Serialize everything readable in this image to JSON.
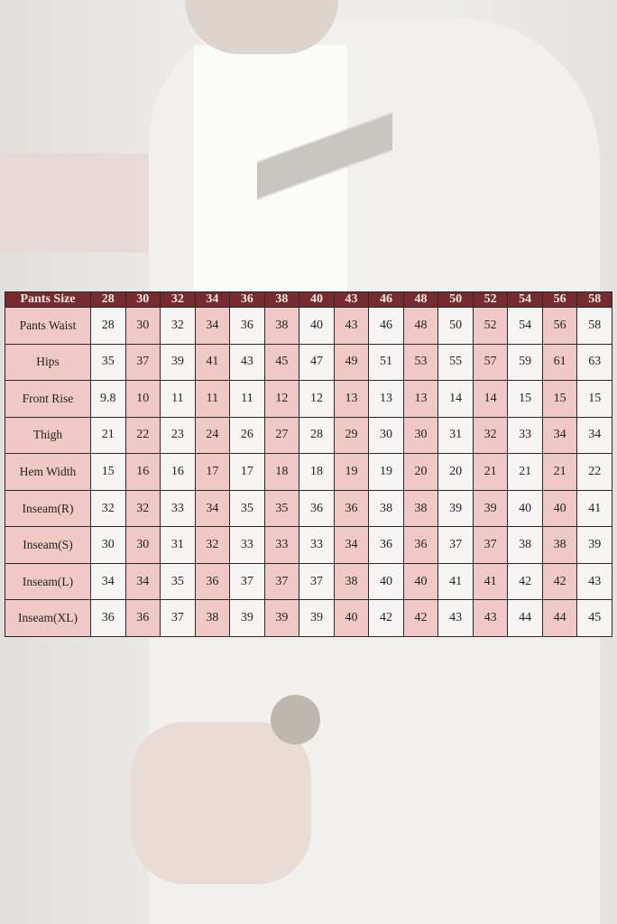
{
  "colors": {
    "header": "#762b2f",
    "pink": "#f0c9c7",
    "white": "#f7f5f3"
  },
  "size_chart": {
    "header_label": "Pants Size",
    "sizes": [
      "28",
      "30",
      "32",
      "34",
      "36",
      "38",
      "40",
      "43",
      "46",
      "48",
      "50",
      "52",
      "54",
      "56",
      "58"
    ],
    "rows": [
      {
        "label": "Pants Waist",
        "values": [
          "28",
          "30",
          "32",
          "34",
          "36",
          "38",
          "40",
          "43",
          "46",
          "48",
          "50",
          "52",
          "54",
          "56",
          "58"
        ]
      },
      {
        "label": "Hips",
        "values": [
          "35",
          "37",
          "39",
          "41",
          "43",
          "45",
          "47",
          "49",
          "51",
          "53",
          "55",
          "57",
          "59",
          "61",
          "63"
        ]
      },
      {
        "label": "Front Rise",
        "values": [
          "9.8",
          "10",
          "11",
          "11",
          "11",
          "12",
          "12",
          "13",
          "13",
          "13",
          "14",
          "14",
          "15",
          "15",
          "15"
        ]
      },
      {
        "label": "Thigh",
        "values": [
          "21",
          "22",
          "23",
          "24",
          "26",
          "27",
          "28",
          "29",
          "30",
          "30",
          "31",
          "32",
          "33",
          "34",
          "34"
        ]
      },
      {
        "label": "Hem Width",
        "values": [
          "15",
          "16",
          "16",
          "17",
          "17",
          "18",
          "18",
          "19",
          "19",
          "20",
          "20",
          "21",
          "21",
          "21",
          "22"
        ]
      },
      {
        "label": "Inseam(R)",
        "values": [
          "32",
          "32",
          "33",
          "34",
          "35",
          "35",
          "36",
          "36",
          "38",
          "38",
          "39",
          "39",
          "40",
          "40",
          "41"
        ]
      },
      {
        "label": "Inseam(S)",
        "values": [
          "30",
          "30",
          "31",
          "32",
          "33",
          "33",
          "33",
          "34",
          "36",
          "36",
          "37",
          "37",
          "38",
          "38",
          "39"
        ]
      },
      {
        "label": "Inseam(L)",
        "values": [
          "34",
          "34",
          "35",
          "36",
          "37",
          "37",
          "37",
          "38",
          "40",
          "40",
          "41",
          "41",
          "42",
          "42",
          "43"
        ]
      },
      {
        "label": "Inseam(XL)",
        "values": [
          "36",
          "36",
          "37",
          "38",
          "39",
          "39",
          "39",
          "40",
          "42",
          "42",
          "43",
          "43",
          "44",
          "44",
          "45"
        ]
      }
    ]
  }
}
